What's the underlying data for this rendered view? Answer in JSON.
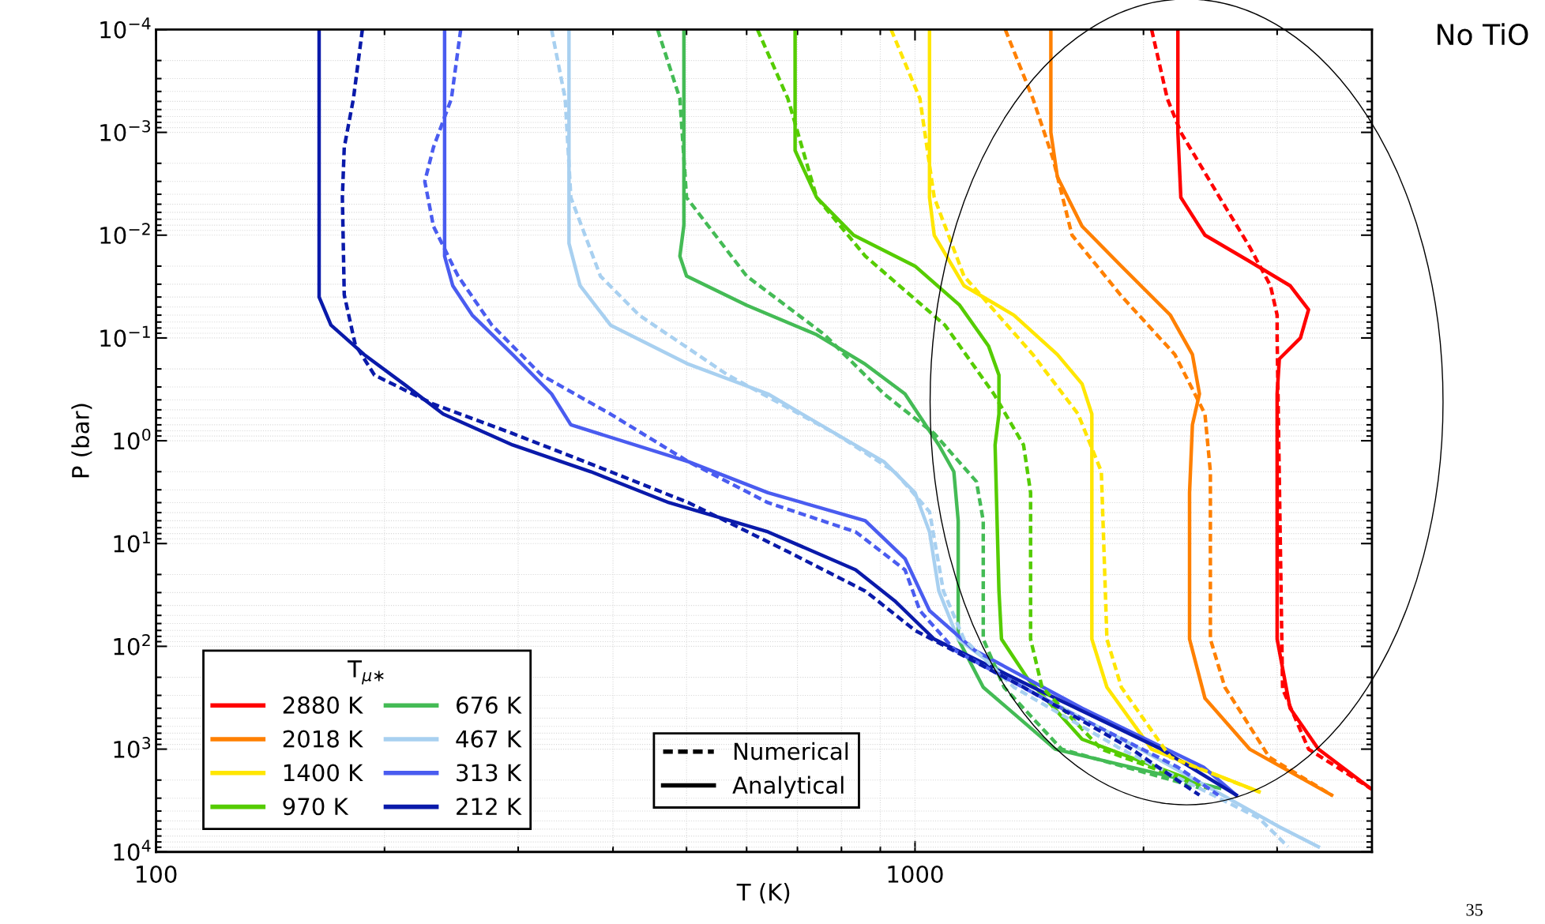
{
  "chart_data": {
    "type": "line",
    "xlabel": "T (K)",
    "ylabel": "P (bar)",
    "legend_title": "T$_{μ∗}$",
    "log": "xy",
    "grid": true,
    "legend": "bottom left",
    "xlim": [
      100,
      4000
    ],
    "xticks": [
      100,
      1000
    ],
    "ylim": [
      10000,
      0.0001
    ],
    "yticks": [
      {
        "value": 0.0001,
        "label": "10$^{−4}$"
      },
      {
        "value": 0.001,
        "label": "10$^{−3}$"
      },
      {
        "value": 0.01,
        "label": "10$^{−2}$"
      },
      {
        "value": 0.1,
        "label": "10$^{−1}$"
      },
      {
        "value": 1,
        "label": "10$^{0}$"
      },
      {
        "value": 10,
        "label": "10$^{1}$"
      },
      {
        "value": 100,
        "label": "10$^{2}$"
      },
      {
        "value": 1000,
        "label": "10$^{3}$"
      },
      {
        "value": 10000,
        "label": "10$^{4}$"
      }
    ],
    "annotations": [
      "Numerical",
      "Analytical",
      "No TiO",
      "35"
    ],
    "series": [
      {
        "name": "2880 K",
        "color": "#ff0000",
        "line_style": "solid",
        "x": [
          2220,
          2220,
          2240,
          2410,
          2760,
          3120,
          3300,
          3220,
          3020,
          3000,
          3000,
          3120,
          3400,
          3980
        ],
        "values": [
          0.0001,
          0.001,
          0.0043,
          0.01,
          0.018,
          0.031,
          0.053,
          0.1,
          0.16,
          0.35,
          85,
          400,
          1000,
          2400
        ]
      },
      {
        "name": "2018 K",
        "color": "#ff8000",
        "line_style": "solid",
        "x": [
          1510,
          1510,
          1540,
          1660,
          1870,
          2170,
          2320,
          2370,
          2320,
          2300,
          2300,
          2410,
          2760,
          3540
        ],
        "values": [
          0.0001,
          0.001,
          0.0027,
          0.0082,
          0.02,
          0.06,
          0.145,
          0.35,
          0.7,
          3.2,
          85,
          320,
          1000,
          2800
        ]
      },
      {
        "name": "1400 K",
        "color": "#ffe600",
        "line_style": "solid",
        "x": [
          1045,
          1045,
          1060,
          1160,
          1350,
          1540,
          1660,
          1710,
          1710,
          1710,
          1790,
          2050,
          2840
        ],
        "values": [
          0.0001,
          0.0043,
          0.01,
          0.031,
          0.06,
          0.145,
          0.28,
          0.55,
          1.6,
          85,
          250,
          1000,
          2600
        ]
      },
      {
        "name": "970 K",
        "color": "#55cc00",
        "line_style": "solid",
        "x": [
          695,
          695,
          742,
          830,
          1000,
          1145,
          1250,
          1290,
          1290,
          1275,
          1290,
          1300,
          1410,
          1660,
          2470
        ],
        "values": [
          0.0001,
          0.0015,
          0.0043,
          0.01,
          0.02,
          0.048,
          0.12,
          0.23,
          0.55,
          1.1,
          29,
          85,
          210,
          800,
          2400
        ]
      },
      {
        "name": "676 K",
        "color": "#44bb55",
        "line_style": "solid",
        "x": [
          496,
          496,
          490,
          500,
          600,
          742,
          860,
          970,
          1075,
          1125,
          1140,
          1140,
          1230,
          1530,
          2520
        ],
        "values": [
          0.0001,
          0.008,
          0.016,
          0.025,
          0.048,
          0.093,
          0.18,
          0.35,
          1.1,
          2,
          6,
          85,
          250,
          1000,
          2400
        ]
      },
      {
        "name": "467 K",
        "color": "#a8d0f0",
        "line_style": "solid",
        "x": [
          350,
          350,
          362,
          397,
          503,
          640,
          785,
          910,
          1000,
          1045,
          1075,
          1140,
          1390,
          1980,
          3020,
          3400
        ],
        "values": [
          0.0001,
          0.012,
          0.031,
          0.075,
          0.18,
          0.35,
          0.85,
          1.6,
          3.2,
          7.7,
          29,
          85,
          250,
          1000,
          5700,
          8900
        ]
      },
      {
        "name": "313 K",
        "color": "#4a5cf0",
        "line_style": "solid",
        "x": [
          240,
          240,
          246,
          261,
          295,
          332,
          352,
          503,
          640,
          860,
          970,
          1045,
          1200,
          1660,
          2400,
          2650
        ],
        "values": [
          0.0001,
          0.016,
          0.031,
          0.06,
          0.145,
          0.35,
          0.7,
          1.6,
          3.2,
          6,
          14,
          45,
          110,
          400,
          1500,
          2800
        ]
      },
      {
        "name": "212 K",
        "color": "#0a1aaa",
        "line_style": "solid",
        "x": [
          164,
          164,
          170,
          188,
          212,
          239,
          295,
          374,
          474,
          640,
          835,
          940,
          1060,
          1430,
          2110,
          2650
        ],
        "values": [
          0.0001,
          0.04,
          0.075,
          0.145,
          0.28,
          0.55,
          1.1,
          2,
          4,
          7.7,
          18,
          36,
          85,
          250,
          1000,
          2800
        ]
      },
      {
        "color": "#ff0000",
        "line_style": "dashed",
        "x": [
          2050,
          2150,
          2240,
          2520,
          2760,
          2940,
          3000,
          3000,
          3050,
          3300,
          3980
        ],
        "values": [
          0.0001,
          0.00047,
          0.001,
          0.0043,
          0.013,
          0.031,
          0.06,
          0.1,
          260,
          1000,
          2400
        ]
      },
      {
        "color": "#ff8000",
        "line_style": "dashed",
        "x": [
          1315,
          1430,
          1520,
          1610,
          1870,
          2200,
          2410,
          2450,
          2450,
          2560,
          2930,
          3540
        ],
        "values": [
          0.0001,
          0.00047,
          0.0018,
          0.01,
          0.039,
          0.145,
          0.55,
          2,
          85,
          250,
          1200,
          2800
        ]
      },
      {
        "color": "#ffe600",
        "line_style": "dashed",
        "x": [
          930,
          1015,
          1060,
          1160,
          1430,
          1640,
          1760,
          1790,
          1870,
          2170,
          2840
        ],
        "values": [
          0.0001,
          0.00047,
          0.0043,
          0.025,
          0.145,
          0.55,
          2,
          85,
          250,
          1200,
          2600
        ]
      },
      {
        "color": "#55cc00",
        "line_style": "dashed",
        "x": [
          620,
          680,
          742,
          860,
          1095,
          1270,
          1390,
          1420,
          1420,
          1470,
          1760,
          2430
        ],
        "values": [
          0.0001,
          0.00047,
          0.0043,
          0.016,
          0.075,
          0.35,
          1.1,
          3.2,
          85,
          250,
          1000,
          2400
        ]
      },
      {
        "color": "#44bb55",
        "line_style": "dashed",
        "x": [
          458,
          490,
          500,
          600,
          760,
          910,
          1060,
          1205,
          1230,
          1230,
          1310,
          1560,
          2380
        ],
        "values": [
          0.0001,
          0.00047,
          0.0043,
          0.025,
          0.093,
          0.35,
          0.85,
          2.5,
          6,
          85,
          250,
          1000,
          2400
        ]
      },
      {
        "color": "#a8d0f0",
        "line_style": "dashed",
        "x": [
          332,
          346,
          352,
          385,
          433,
          567,
          785,
          940,
          1045,
          1090,
          1160,
          1350,
          1870,
          2840,
          3100
        ],
        "values": [
          0.0001,
          0.00047,
          0.0043,
          0.025,
          0.06,
          0.23,
          0.85,
          2,
          4.9,
          29,
          85,
          250,
          1000,
          4700,
          8900
        ]
      },
      {
        "color": "#4a5cf0",
        "line_style": "dashed",
        "x": [
          252,
          245,
          232,
          226,
          232,
          250,
          277,
          322,
          397,
          503,
          640,
          835,
          970,
          1015,
          1130,
          1560,
          2220,
          2510
        ],
        "values": [
          0.0001,
          0.00047,
          0.0014,
          0.003,
          0.0082,
          0.025,
          0.075,
          0.23,
          0.55,
          1.6,
          4,
          7.7,
          18,
          45,
          110,
          400,
          1500,
          2800
        ]
      },
      {
        "color": "#0a1aaa",
        "line_style": "dashed",
        "x": [
          187,
          182,
          177,
          176,
          177,
          183,
          194,
          232,
          295,
          397,
          503,
          680,
          860,
          1000,
          1390,
          1930,
          2370
        ],
        "values": [
          0.0001,
          0.00047,
          0.0014,
          0.0043,
          0.038,
          0.116,
          0.23,
          0.44,
          0.85,
          2,
          4,
          12,
          29,
          70,
          250,
          1000,
          2800
        ]
      }
    ]
  }
}
